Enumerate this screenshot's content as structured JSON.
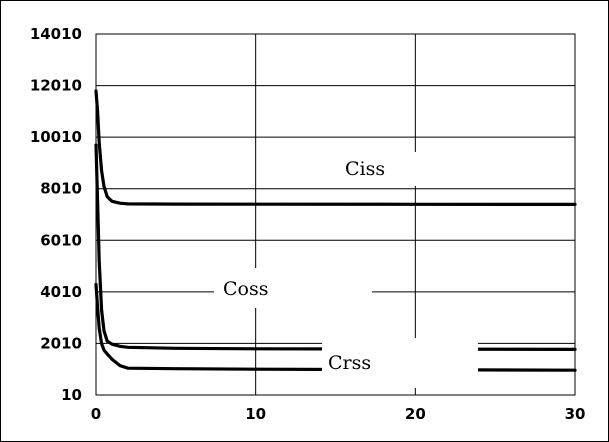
{
  "chart_data": {
    "type": "line",
    "title": "",
    "xlabel": "",
    "ylabel": "",
    "xlim": [
      0,
      30
    ],
    "ylim": [
      10,
      14010
    ],
    "x_ticks": [
      "0",
      "10",
      "20",
      "30"
    ],
    "y_ticks": [
      "10",
      "2010",
      "4010",
      "6010",
      "8010",
      "10010",
      "12010",
      "14010"
    ],
    "grid": true,
    "legend": "none",
    "series": [
      {
        "name": "Ciss",
        "x": [
          0,
          0.1,
          0.2,
          0.35,
          0.5,
          0.7,
          1.0,
          1.5,
          2,
          5,
          10,
          20,
          30
        ],
        "y": [
          11800,
          11000,
          9800,
          8700,
          8100,
          7700,
          7520,
          7450,
          7420,
          7415,
          7410,
          7405,
          7400
        ]
      },
      {
        "name": "Coss",
        "x": [
          0,
          0.1,
          0.2,
          0.35,
          0.5,
          0.7,
          1.0,
          1.5,
          2,
          5,
          10,
          20,
          30
        ],
        "y": [
          9700,
          7500,
          5200,
          3300,
          2500,
          2100,
          1980,
          1900,
          1860,
          1820,
          1800,
          1790,
          1780
        ]
      },
      {
        "name": "Crss",
        "x": [
          0,
          0.1,
          0.2,
          0.35,
          0.5,
          0.7,
          1.0,
          1.5,
          2,
          5,
          10,
          20,
          30
        ],
        "y": [
          4300,
          3400,
          2600,
          2000,
          1750,
          1600,
          1400,
          1150,
          1050,
          1030,
          1010,
          990,
          970
        ]
      }
    ],
    "annotations": [
      "Ciss",
      "Coss",
      "Crss"
    ],
    "colors": {
      "line": "#000000",
      "grid": "#000000",
      "background": "#ffffff"
    }
  }
}
